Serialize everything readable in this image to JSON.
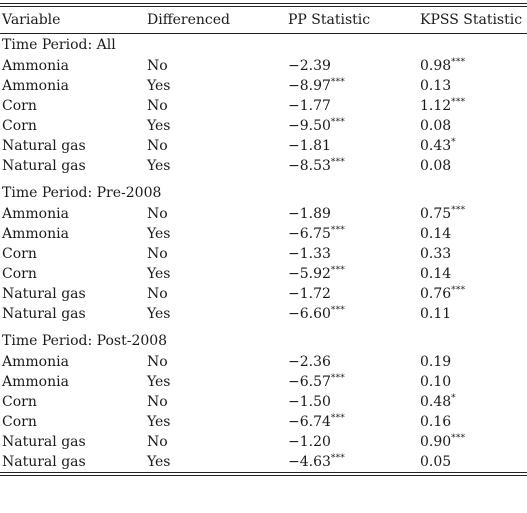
{
  "headers": {
    "variable": "Variable",
    "differenced": "Differenced",
    "pp": "PP Statistic",
    "kpss": "KPSS Statistic"
  },
  "sections": [
    {
      "title": "Time Period: All",
      "rows": [
        {
          "variable": "Ammonia",
          "differenced": "No",
          "pp": "−2.39",
          "pp_sig": "",
          "kpss": "0.98",
          "kpss_sig": "***"
        },
        {
          "variable": "Ammonia",
          "differenced": "Yes",
          "pp": "−8.97",
          "pp_sig": "***",
          "kpss": "0.13",
          "kpss_sig": ""
        },
        {
          "variable": "Corn",
          "differenced": "No",
          "pp": "−1.77",
          "pp_sig": "",
          "kpss": "1.12",
          "kpss_sig": "***"
        },
        {
          "variable": "Corn",
          "differenced": "Yes",
          "pp": "−9.50",
          "pp_sig": "***",
          "kpss": "0.08",
          "kpss_sig": ""
        },
        {
          "variable": "Natural gas",
          "differenced": "No",
          "pp": "−1.81",
          "pp_sig": "",
          "kpss": "0.43",
          "kpss_sig": "*"
        },
        {
          "variable": "Natural gas",
          "differenced": "Yes",
          "pp": "−8.53",
          "pp_sig": "***",
          "kpss": "0.08",
          "kpss_sig": ""
        }
      ]
    },
    {
      "title": "Time Period: Pre-2008",
      "rows": [
        {
          "variable": "Ammonia",
          "differenced": "No",
          "pp": "−1.89",
          "pp_sig": "",
          "kpss": "0.75",
          "kpss_sig": "***"
        },
        {
          "variable": "Ammonia",
          "differenced": "Yes",
          "pp": "−6.75",
          "pp_sig": "***",
          "kpss": "0.14",
          "kpss_sig": ""
        },
        {
          "variable": "Corn",
          "differenced": "No",
          "pp": "−1.33",
          "pp_sig": "",
          "kpss": "0.33",
          "kpss_sig": ""
        },
        {
          "variable": "Corn",
          "differenced": "Yes",
          "pp": "−5.92",
          "pp_sig": "***",
          "kpss": "0.14",
          "kpss_sig": ""
        },
        {
          "variable": "Natural gas",
          "differenced": "No",
          "pp": "−1.72",
          "pp_sig": "",
          "kpss": "0.76",
          "kpss_sig": "***"
        },
        {
          "variable": "Natural gas",
          "differenced": "Yes",
          "pp": "−6.60",
          "pp_sig": "***",
          "kpss": "0.11",
          "kpss_sig": ""
        }
      ]
    },
    {
      "title": "Time Period: Post-2008",
      "rows": [
        {
          "variable": "Ammonia",
          "differenced": "No",
          "pp": "−2.36",
          "pp_sig": "",
          "kpss": "0.19",
          "kpss_sig": ""
        },
        {
          "variable": "Ammonia",
          "differenced": "Yes",
          "pp": "−6.57",
          "pp_sig": "***",
          "kpss": "0.10",
          "kpss_sig": ""
        },
        {
          "variable": "Corn",
          "differenced": "No",
          "pp": "−1.50",
          "pp_sig": "",
          "kpss": "0.48",
          "kpss_sig": "*"
        },
        {
          "variable": "Corn",
          "differenced": "Yes",
          "pp": "−6.74",
          "pp_sig": "***",
          "kpss": "0.16",
          "kpss_sig": ""
        },
        {
          "variable": "Natural gas",
          "differenced": "No",
          "pp": "−1.20",
          "pp_sig": "",
          "kpss": "0.90",
          "kpss_sig": "***"
        },
        {
          "variable": "Natural gas",
          "differenced": "Yes",
          "pp": "−4.63",
          "pp_sig": "***",
          "kpss": "0.05",
          "kpss_sig": ""
        }
      ]
    }
  ]
}
